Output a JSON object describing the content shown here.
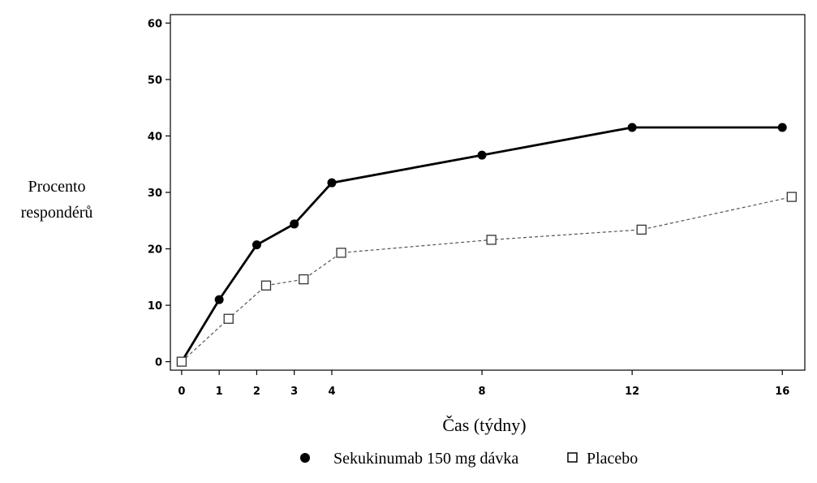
{
  "chart_data": {
    "type": "line",
    "title": "",
    "xlabel": "Čas (týdny)",
    "ylabel_lines": [
      "Procento",
      "respondérů"
    ],
    "x_ticks": [
      0,
      1,
      2,
      3,
      4,
      8,
      12,
      16
    ],
    "y_ticks": [
      0,
      10,
      20,
      30,
      40,
      50,
      60
    ],
    "xlim": [
      -0.3,
      16.6
    ],
    "ylim": [
      -1.5,
      61.5
    ],
    "grid": false,
    "legend_position": "bottom",
    "series": [
      {
        "name": "Sekukinumab 150 mg dávka",
        "marker": "filled-circle",
        "line_style": "solid",
        "color": "#000000",
        "x": [
          0,
          1,
          2,
          3,
          4,
          8,
          12,
          16
        ],
        "y": [
          0,
          11,
          20.7,
          24.4,
          31.7,
          36.6,
          41.5,
          41.5
        ]
      },
      {
        "name": "Placebo",
        "marker": "open-square",
        "line_style": "dashed",
        "color": "#555555",
        "x": [
          0,
          1.25,
          2.25,
          3.25,
          4.25,
          8.25,
          12.25,
          16.25
        ],
        "y": [
          0,
          7.6,
          13.5,
          14.6,
          19.3,
          21.6,
          23.4,
          29.2
        ]
      }
    ]
  }
}
